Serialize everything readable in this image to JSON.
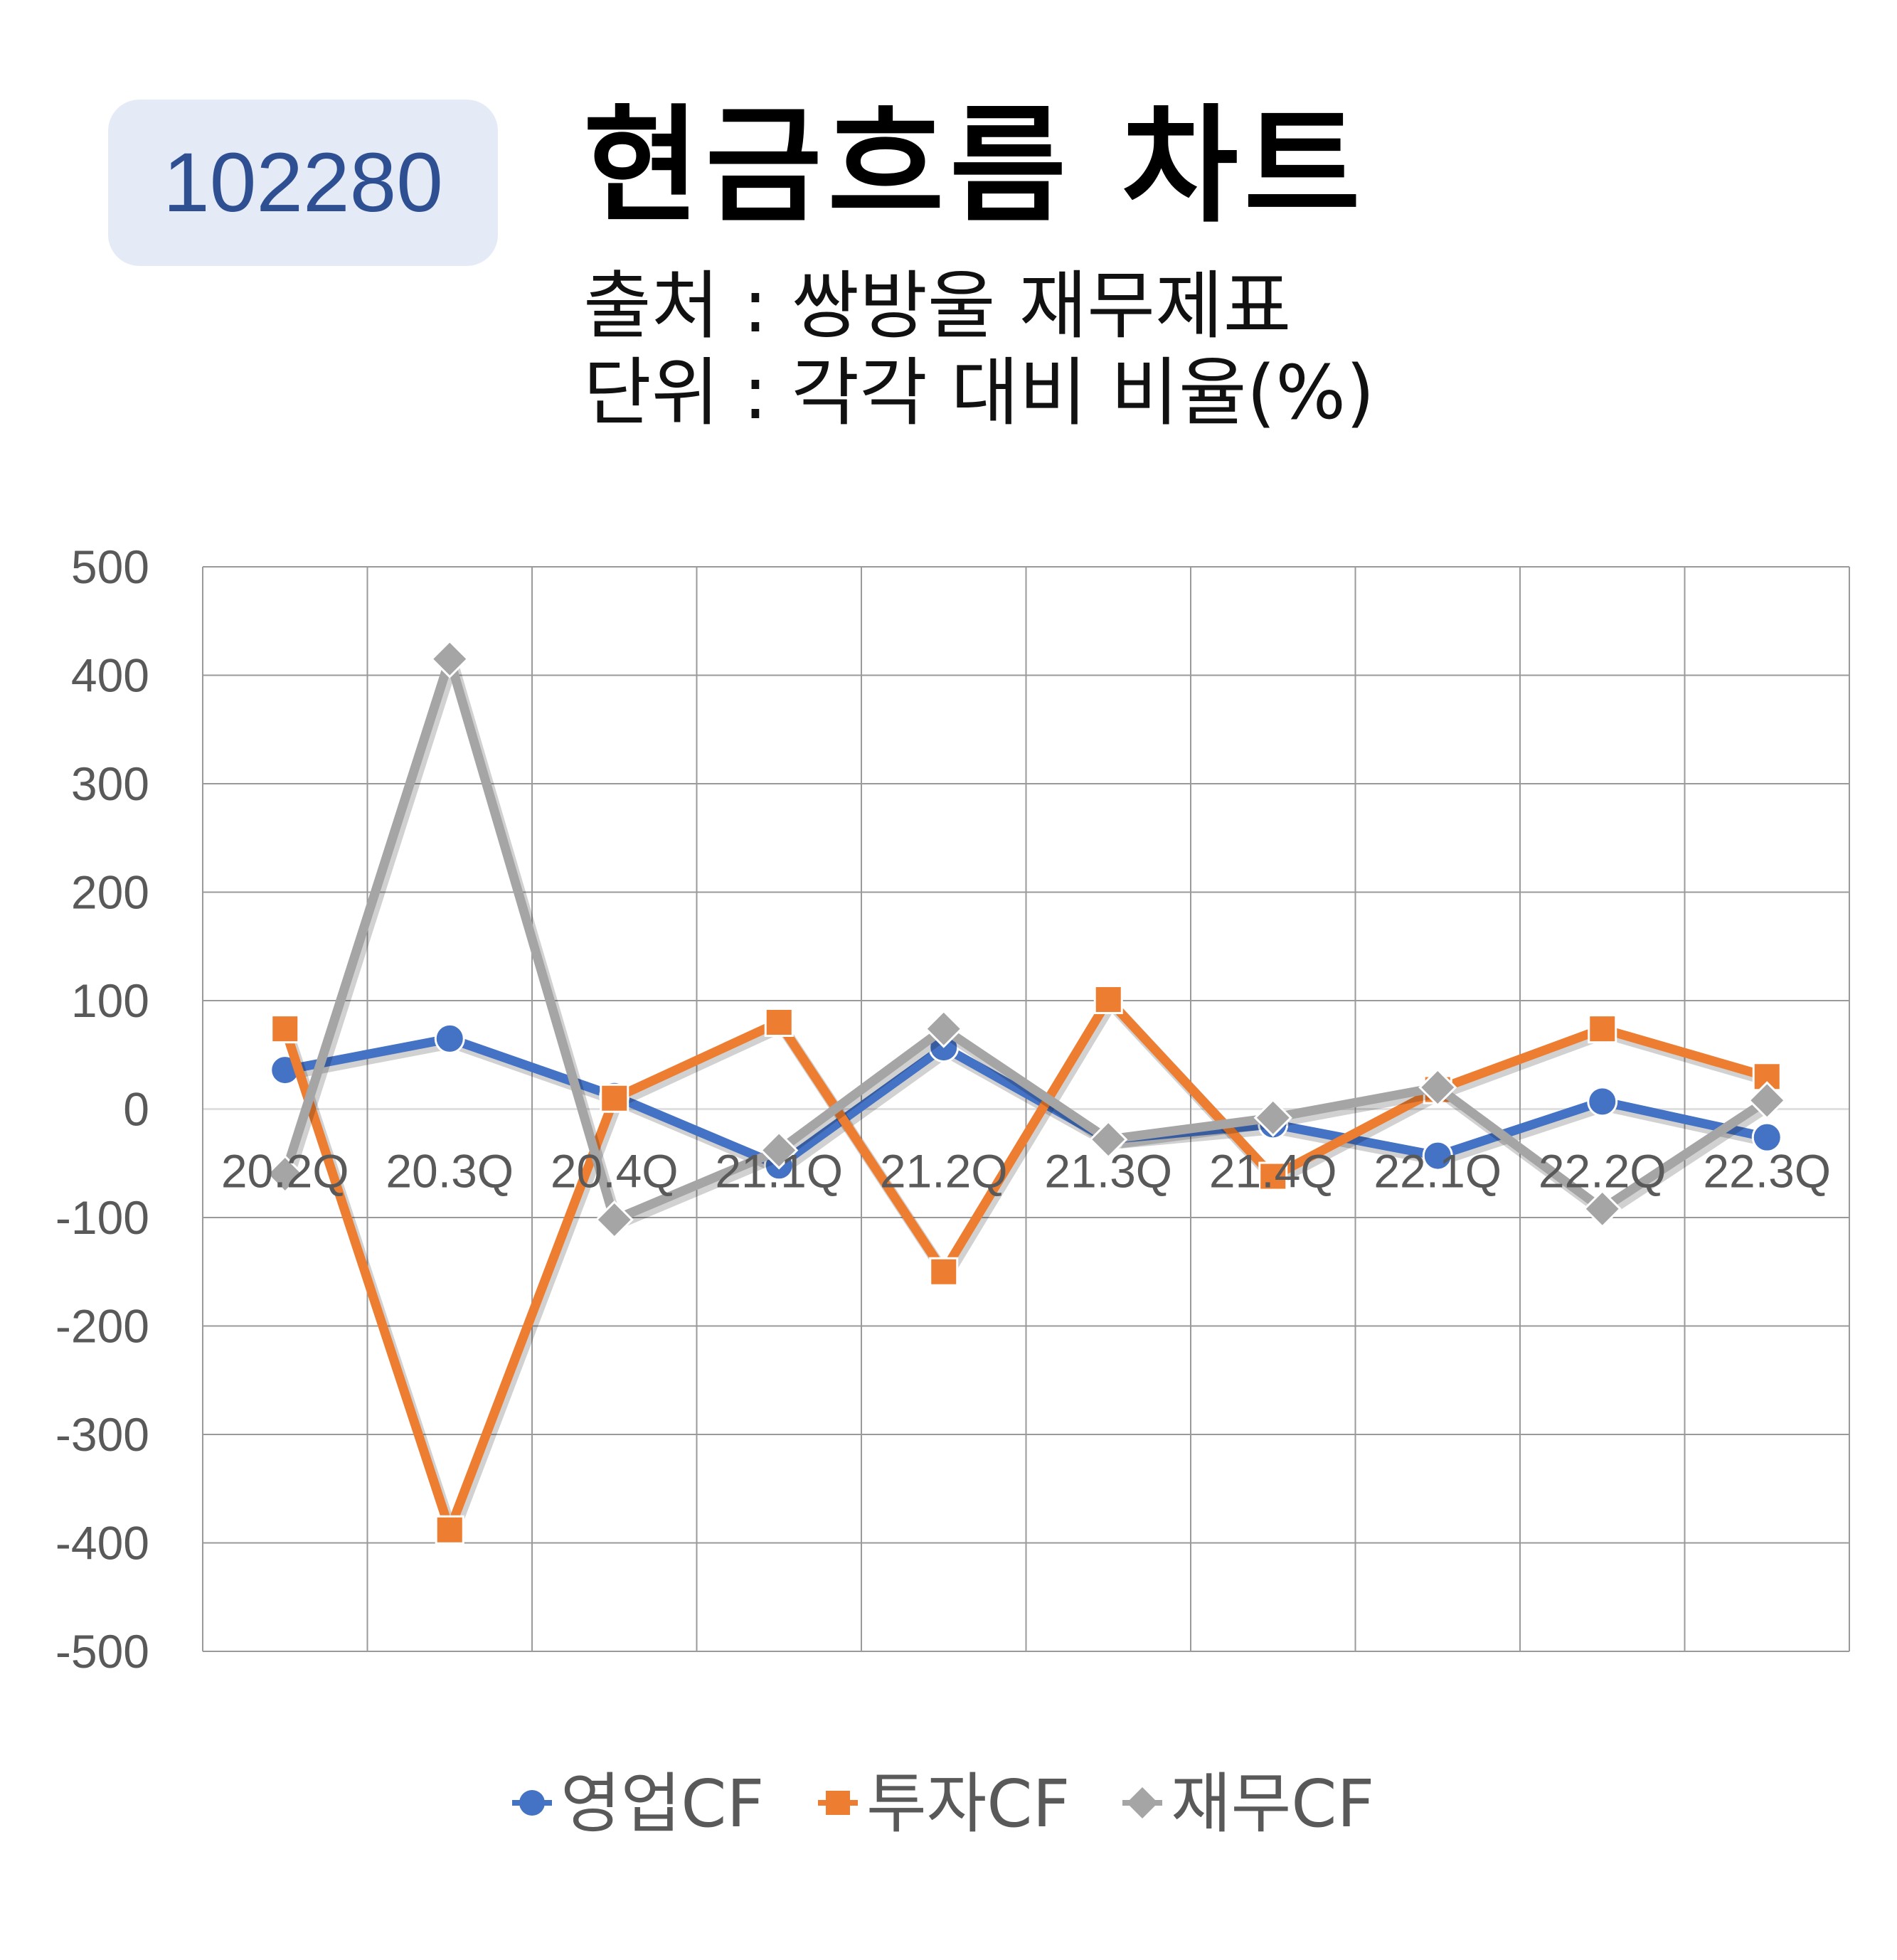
{
  "badge": {
    "code": "102280"
  },
  "header": {
    "title": "현금흐름 차트",
    "source": "출처 : 쌍방울 재무제표",
    "unit": "단위 : 각각 대비 비율(%)"
  },
  "chart_data": {
    "type": "line",
    "categories": [
      "20.2Q",
      "20.3Q",
      "20.4Q",
      "21.1Q",
      "21.2Q",
      "21.3Q",
      "21.4Q",
      "22.1Q",
      "22.2Q",
      "22.3Q"
    ],
    "ylim": [
      -500,
      500
    ],
    "yticks": [
      500,
      400,
      300,
      200,
      100,
      0,
      -100,
      -200,
      -300,
      -400,
      -500
    ],
    "grid": true,
    "legend_position": "bottom",
    "series": [
      {
        "name": "영업CF",
        "color": "#4472c4",
        "marker": "circle",
        "values": [
          36,
          65,
          12,
          -52,
          57,
          -28,
          -14,
          -43,
          7,
          -26
        ]
      },
      {
        "name": "투자CF",
        "color": "#ed7d31",
        "marker": "square",
        "values": [
          74,
          -388,
          10,
          80,
          -150,
          101,
          -62,
          18,
          74,
          30
        ]
      },
      {
        "name": "재무CF",
        "color": "#a5a5a5",
        "marker": "diamond",
        "values": [
          -60,
          415,
          -102,
          -38,
          74,
          -28,
          -8,
          20,
          -92,
          8
        ]
      }
    ]
  }
}
